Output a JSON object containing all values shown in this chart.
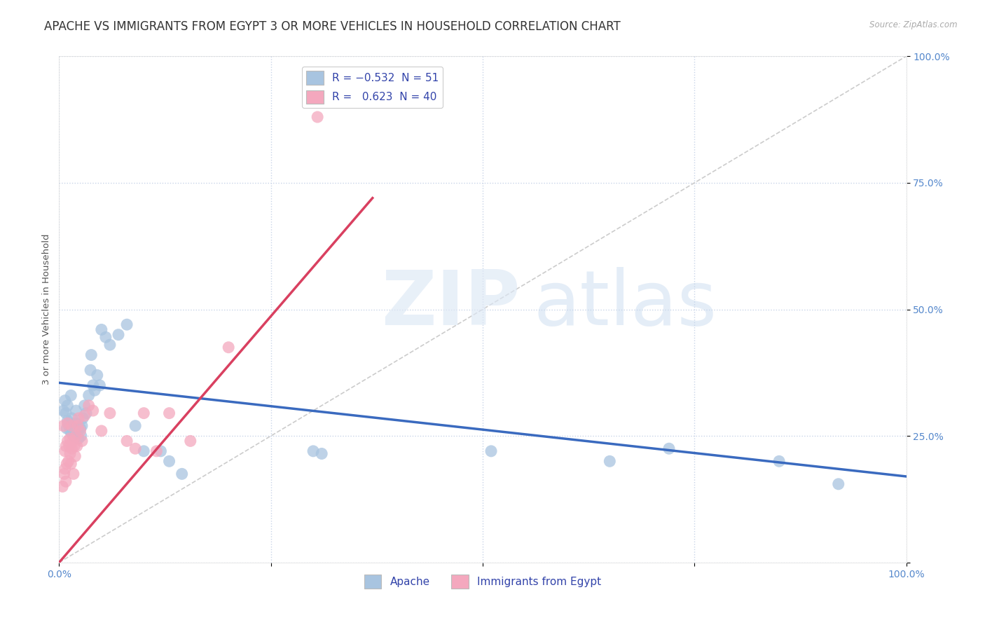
{
  "title": "APACHE VS IMMIGRANTS FROM EGYPT 3 OR MORE VEHICLES IN HOUSEHOLD CORRELATION CHART",
  "source": "Source: ZipAtlas.com",
  "ylabel": "3 or more Vehicles in Household",
  "xlim": [
    0,
    1.0
  ],
  "ylim": [
    0,
    1.0
  ],
  "apache_R": -0.532,
  "apache_N": 51,
  "egypt_R": 0.623,
  "egypt_N": 40,
  "apache_color": "#a8c4e0",
  "apache_line_color": "#3a6abf",
  "egypt_color": "#f4a8be",
  "egypt_line_color": "#d94060",
  "diagonal_color": "#cccccc",
  "bg_color": "#ffffff",
  "grid_color": "#c8d4e8",
  "title_fontsize": 12,
  "tick_fontsize": 10,
  "tick_color": "#5588cc",
  "apache_x": [
    0.005,
    0.007,
    0.008,
    0.009,
    0.01,
    0.01,
    0.011,
    0.012,
    0.013,
    0.014,
    0.015,
    0.015,
    0.016,
    0.017,
    0.018,
    0.019,
    0.02,
    0.02,
    0.021,
    0.022,
    0.023,
    0.025,
    0.026,
    0.027,
    0.028,
    0.03,
    0.032,
    0.035,
    0.037,
    0.038,
    0.04,
    0.042,
    0.045,
    0.048,
    0.05,
    0.055,
    0.06,
    0.07,
    0.08,
    0.09,
    0.1,
    0.12,
    0.13,
    0.145,
    0.3,
    0.31,
    0.51,
    0.65,
    0.72,
    0.85,
    0.92
  ],
  "apache_y": [
    0.3,
    0.32,
    0.295,
    0.265,
    0.31,
    0.28,
    0.275,
    0.27,
    0.26,
    0.33,
    0.285,
    0.255,
    0.27,
    0.25,
    0.25,
    0.265,
    0.3,
    0.275,
    0.255,
    0.27,
    0.245,
    0.265,
    0.25,
    0.27,
    0.285,
    0.31,
    0.295,
    0.33,
    0.38,
    0.41,
    0.35,
    0.34,
    0.37,
    0.35,
    0.46,
    0.445,
    0.43,
    0.45,
    0.47,
    0.27,
    0.22,
    0.22,
    0.2,
    0.175,
    0.22,
    0.215,
    0.22,
    0.2,
    0.225,
    0.2,
    0.155
  ],
  "egypt_x": [
    0.004,
    0.005,
    0.006,
    0.007,
    0.007,
    0.008,
    0.008,
    0.009,
    0.01,
    0.01,
    0.011,
    0.012,
    0.013,
    0.013,
    0.014,
    0.015,
    0.015,
    0.016,
    0.017,
    0.018,
    0.019,
    0.02,
    0.021,
    0.022,
    0.023,
    0.025,
    0.027,
    0.03,
    0.035,
    0.04,
    0.05,
    0.06,
    0.08,
    0.09,
    0.1,
    0.115,
    0.13,
    0.155,
    0.2,
    0.305
  ],
  "egypt_y": [
    0.15,
    0.27,
    0.175,
    0.185,
    0.22,
    0.16,
    0.23,
    0.195,
    0.24,
    0.275,
    0.2,
    0.23,
    0.215,
    0.245,
    0.195,
    0.27,
    0.225,
    0.24,
    0.175,
    0.23,
    0.21,
    0.25,
    0.23,
    0.27,
    0.285,
    0.26,
    0.24,
    0.29,
    0.31,
    0.3,
    0.26,
    0.295,
    0.24,
    0.225,
    0.295,
    0.22,
    0.295,
    0.24,
    0.425,
    0.88
  ],
  "apache_line_x0": 0.0,
  "apache_line_y0": 0.355,
  "apache_line_x1": 1.0,
  "apache_line_y1": 0.17,
  "egypt_line_x0": 0.0,
  "egypt_line_y0": 0.0,
  "egypt_line_x1": 0.37,
  "egypt_line_y1": 0.72
}
